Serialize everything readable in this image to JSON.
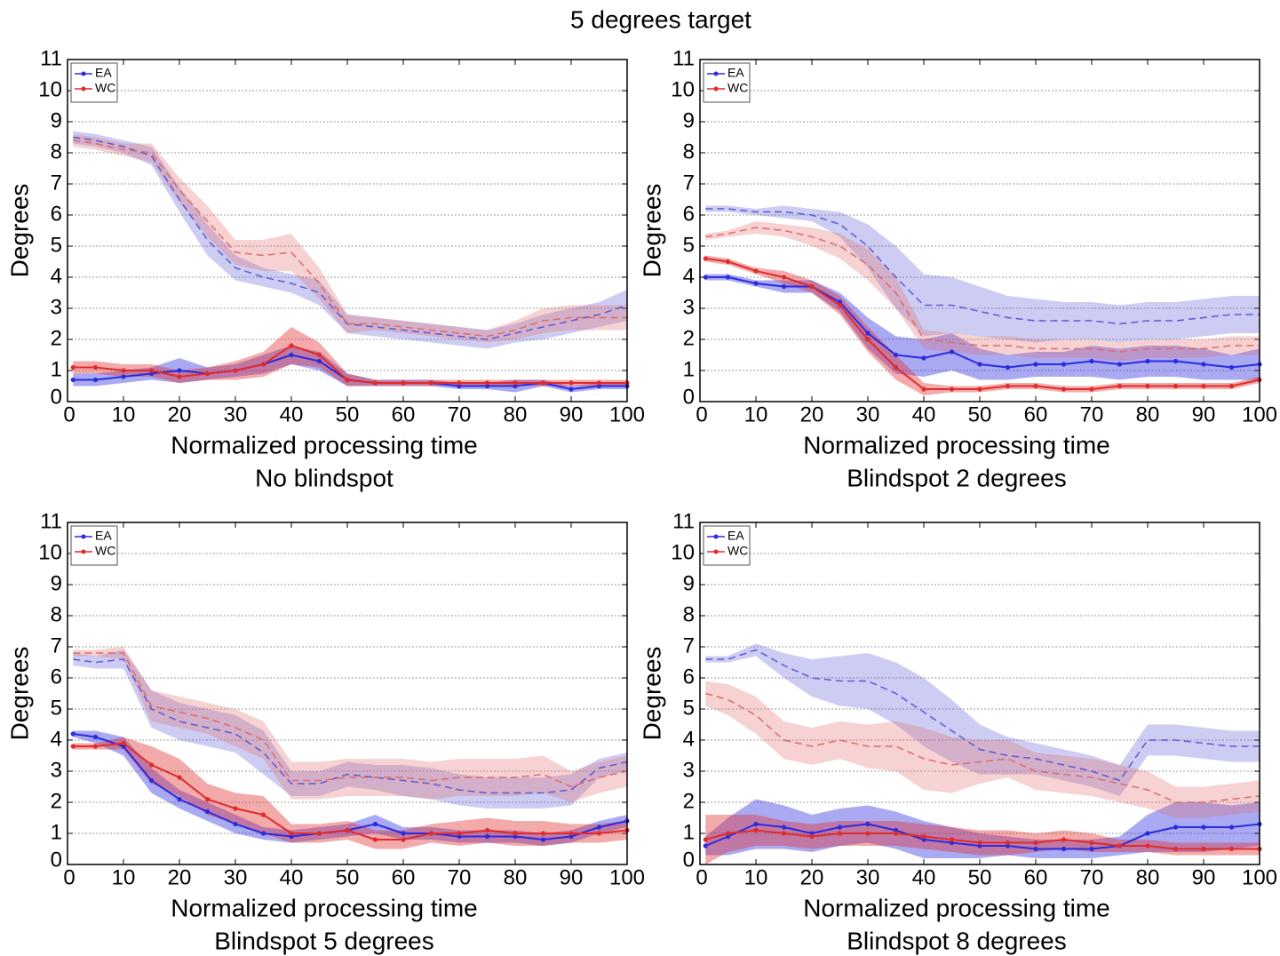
{
  "title": "5  degrees target",
  "chart_data": [
    {
      "type": "line",
      "title": "No blindspot",
      "xlabel": "Normalized processing time",
      "ylabel": "Degrees",
      "x": [
        1,
        5,
        10,
        15,
        20,
        25,
        30,
        35,
        40,
        45,
        50,
        55,
        60,
        65,
        70,
        75,
        80,
        85,
        90,
        95,
        100
      ],
      "xlim": [
        0,
        100
      ],
      "ylim": [
        0,
        11
      ],
      "xticks": [
        0,
        10,
        20,
        30,
        40,
        50,
        60,
        70,
        80,
        90,
        100
      ],
      "yticks": [
        0,
        1,
        2,
        3,
        4,
        5,
        6,
        7,
        8,
        9,
        10,
        11
      ],
      "grid": true,
      "legend": "upper left",
      "series": [
        {
          "name": "EA",
          "color": "#2b2be0",
          "style": "solid",
          "values": [
            0.7,
            0.7,
            0.8,
            0.9,
            1.0,
            0.9,
            1.0,
            1.2,
            1.5,
            1.3,
            0.7,
            0.6,
            0.6,
            0.6,
            0.5,
            0.5,
            0.5,
            0.6,
            0.4,
            0.5,
            0.5
          ],
          "error": [
            0.2,
            0.2,
            0.2,
            0.2,
            0.4,
            0.2,
            0.2,
            0.3,
            0.3,
            0.3,
            0.2,
            0.1,
            0.1,
            0.1,
            0.1,
            0.1,
            0.2,
            0.1,
            0.1,
            0.1,
            0.1
          ]
        },
        {
          "name": "WC",
          "color": "#e02b2b",
          "style": "solid",
          "values": [
            1.1,
            1.1,
            1.0,
            1.0,
            0.8,
            0.9,
            1.0,
            1.2,
            1.8,
            1.5,
            0.7,
            0.6,
            0.6,
            0.6,
            0.6,
            0.6,
            0.6,
            0.6,
            0.6,
            0.6,
            0.6
          ],
          "error": [
            0.2,
            0.2,
            0.2,
            0.2,
            0.2,
            0.2,
            0.3,
            0.4,
            0.6,
            0.4,
            0.2,
            0.1,
            0.1,
            0.1,
            0.1,
            0.1,
            0.1,
            0.1,
            0.1,
            0.1,
            0.1
          ]
        },
        {
          "color": "#5a5ad6",
          "style": "dashed",
          "values": [
            8.5,
            8.4,
            8.2,
            7.9,
            6.5,
            5.2,
            4.3,
            4.0,
            3.8,
            3.5,
            2.5,
            2.4,
            2.3,
            2.2,
            2.1,
            2.0,
            2.2,
            2.4,
            2.6,
            2.8,
            3.1
          ],
          "error": [
            0.2,
            0.2,
            0.2,
            0.3,
            0.4,
            0.5,
            0.4,
            0.3,
            0.3,
            0.4,
            0.3,
            0.3,
            0.3,
            0.3,
            0.3,
            0.3,
            0.3,
            0.4,
            0.4,
            0.4,
            0.5
          ]
        },
        {
          "color": "#e06a6a",
          "style": "dashed",
          "values": [
            8.4,
            8.3,
            8.1,
            8.0,
            6.8,
            5.8,
            4.8,
            4.7,
            4.8,
            3.8,
            2.5,
            2.5,
            2.4,
            2.3,
            2.2,
            2.1,
            2.3,
            2.6,
            2.7,
            2.7,
            2.7
          ],
          "error": [
            0.2,
            0.2,
            0.2,
            0.3,
            0.4,
            0.5,
            0.4,
            0.5,
            0.6,
            0.5,
            0.3,
            0.2,
            0.2,
            0.2,
            0.2,
            0.2,
            0.3,
            0.4,
            0.4,
            0.4,
            0.4
          ]
        }
      ]
    },
    {
      "type": "line",
      "title": "Blindspot 2 degrees",
      "xlabel": "Normalized processing time",
      "ylabel": "Degrees",
      "x": [
        1,
        5,
        10,
        15,
        20,
        25,
        30,
        35,
        40,
        45,
        50,
        55,
        60,
        65,
        70,
        75,
        80,
        85,
        90,
        95,
        100
      ],
      "xlim": [
        0,
        100
      ],
      "ylim": [
        0,
        11
      ],
      "xticks": [
        0,
        10,
        20,
        30,
        40,
        50,
        60,
        70,
        80,
        90,
        100
      ],
      "yticks": [
        0,
        1,
        2,
        3,
        4,
        5,
        6,
        7,
        8,
        9,
        10,
        11
      ],
      "grid": true,
      "legend": "upper left",
      "series": [
        {
          "name": "EA",
          "color": "#2b2be0",
          "style": "solid",
          "values": [
            4.0,
            4.0,
            3.8,
            3.7,
            3.7,
            3.2,
            2.2,
            1.5,
            1.4,
            1.6,
            1.2,
            1.1,
            1.2,
            1.2,
            1.3,
            1.2,
            1.3,
            1.3,
            1.2,
            1.1,
            1.2
          ],
          "error": [
            0.1,
            0.1,
            0.1,
            0.2,
            0.2,
            0.3,
            0.5,
            0.6,
            0.6,
            0.6,
            0.5,
            0.4,
            0.4,
            0.4,
            0.5,
            0.5,
            0.5,
            0.5,
            0.5,
            0.4,
            0.5
          ]
        },
        {
          "name": "WC",
          "color": "#e02b2b",
          "style": "solid",
          "values": [
            4.6,
            4.5,
            4.2,
            4.0,
            3.7,
            3.1,
            2.0,
            1.1,
            0.4,
            0.4,
            0.4,
            0.5,
            0.5,
            0.4,
            0.4,
            0.5,
            0.5,
            0.5,
            0.5,
            0.5,
            0.7
          ],
          "error": [
            0.1,
            0.1,
            0.1,
            0.2,
            0.2,
            0.3,
            0.4,
            0.4,
            0.2,
            0.1,
            0.1,
            0.1,
            0.1,
            0.1,
            0.1,
            0.1,
            0.1,
            0.1,
            0.1,
            0.1,
            0.1
          ]
        },
        {
          "color": "#5a5ad6",
          "style": "dashed",
          "values": [
            6.2,
            6.2,
            6.1,
            6.1,
            6.0,
            5.7,
            5.0,
            4.0,
            3.1,
            3.1,
            2.9,
            2.7,
            2.6,
            2.6,
            2.6,
            2.5,
            2.6,
            2.6,
            2.7,
            2.8,
            2.8
          ],
          "error": [
            0.1,
            0.1,
            0.1,
            0.2,
            0.2,
            0.4,
            0.7,
            1.0,
            1.0,
            0.9,
            0.8,
            0.7,
            0.7,
            0.6,
            0.6,
            0.6,
            0.6,
            0.6,
            0.6,
            0.6,
            0.6
          ]
        },
        {
          "color": "#e06a6a",
          "style": "dashed",
          "values": [
            5.3,
            5.4,
            5.6,
            5.5,
            5.3,
            5.0,
            4.4,
            3.5,
            2.0,
            1.9,
            1.8,
            1.8,
            1.7,
            1.7,
            1.7,
            1.6,
            1.7,
            1.7,
            1.7,
            1.8,
            1.8
          ],
          "error": [
            0.1,
            0.1,
            0.2,
            0.2,
            0.3,
            0.4,
            0.5,
            0.5,
            0.3,
            0.3,
            0.3,
            0.3,
            0.3,
            0.3,
            0.3,
            0.3,
            0.3,
            0.3,
            0.3,
            0.3,
            0.3
          ]
        }
      ]
    },
    {
      "type": "line",
      "title": "Blindspot 5 degrees",
      "xlabel": "Normalized processing time",
      "ylabel": "Degrees",
      "x": [
        1,
        5,
        10,
        15,
        20,
        25,
        30,
        35,
        40,
        45,
        50,
        55,
        60,
        65,
        70,
        75,
        80,
        85,
        90,
        95,
        100
      ],
      "xlim": [
        0,
        100
      ],
      "ylim": [
        0,
        11
      ],
      "xticks": [
        0,
        10,
        20,
        30,
        40,
        50,
        60,
        70,
        80,
        90,
        100
      ],
      "yticks": [
        0,
        1,
        2,
        3,
        4,
        5,
        6,
        7,
        8,
        9,
        10,
        11
      ],
      "grid": true,
      "legend": "upper left",
      "series": [
        {
          "name": "EA",
          "color": "#2b2be0",
          "style": "solid",
          "values": [
            4.2,
            4.1,
            3.8,
            2.7,
            2.1,
            1.7,
            1.3,
            1.0,
            0.9,
            1.0,
            1.1,
            1.3,
            1.0,
            1.0,
            0.9,
            0.9,
            0.9,
            0.8,
            0.9,
            1.2,
            1.4
          ],
          "error": [
            0.1,
            0.2,
            0.3,
            0.4,
            0.3,
            0.3,
            0.3,
            0.2,
            0.2,
            0.2,
            0.2,
            0.3,
            0.2,
            0.2,
            0.2,
            0.2,
            0.2,
            0.2,
            0.2,
            0.2,
            0.2
          ]
        },
        {
          "name": "WC",
          "color": "#e02b2b",
          "style": "solid",
          "values": [
            3.8,
            3.8,
            3.9,
            3.2,
            2.8,
            2.1,
            1.8,
            1.6,
            1.0,
            1.0,
            1.1,
            0.8,
            0.8,
            1.0,
            1.0,
            1.1,
            1.0,
            1.0,
            1.0,
            1.0,
            1.1
          ],
          "error": [
            0.1,
            0.1,
            0.2,
            0.6,
            0.6,
            0.5,
            0.5,
            0.6,
            0.3,
            0.3,
            0.3,
            0.3,
            0.3,
            0.3,
            0.4,
            0.4,
            0.4,
            0.4,
            0.3,
            0.3,
            0.3
          ]
        },
        {
          "color": "#5a5ad6",
          "style": "dashed",
          "values": [
            6.6,
            6.5,
            6.6,
            5.0,
            4.6,
            4.4,
            4.2,
            3.6,
            2.6,
            2.6,
            2.9,
            2.8,
            2.7,
            2.6,
            2.4,
            2.3,
            2.3,
            2.3,
            2.4,
            3.1,
            3.3
          ],
          "error": [
            0.2,
            0.2,
            0.3,
            0.6,
            0.6,
            0.6,
            0.6,
            0.7,
            0.4,
            0.4,
            0.4,
            0.4,
            0.5,
            0.5,
            0.5,
            0.5,
            0.5,
            0.5,
            0.5,
            0.3,
            0.3
          ]
        },
        {
          "color": "#e06a6a",
          "style": "dashed",
          "values": [
            6.8,
            6.8,
            6.8,
            5.1,
            4.9,
            4.7,
            4.4,
            4.0,
            2.7,
            2.7,
            2.8,
            2.8,
            2.8,
            2.7,
            2.8,
            2.8,
            2.8,
            2.9,
            2.5,
            2.8,
            3.0
          ],
          "error": [
            0.1,
            0.1,
            0.2,
            0.5,
            0.5,
            0.5,
            0.6,
            0.6,
            0.6,
            0.6,
            0.6,
            0.6,
            0.6,
            0.6,
            0.6,
            0.6,
            0.6,
            0.6,
            0.5,
            0.5,
            0.5
          ]
        }
      ]
    },
    {
      "type": "line",
      "title": "Blindspot 8 degrees",
      "xlabel": "Normalized processing time",
      "ylabel": "Degrees",
      "x": [
        1,
        5,
        10,
        15,
        20,
        25,
        30,
        35,
        40,
        45,
        50,
        55,
        60,
        65,
        70,
        75,
        80,
        85,
        90,
        95,
        100
      ],
      "xlim": [
        0,
        100
      ],
      "ylim": [
        0,
        11
      ],
      "xticks": [
        0,
        10,
        20,
        30,
        40,
        50,
        60,
        70,
        80,
        90,
        100
      ],
      "yticks": [
        0,
        1,
        2,
        3,
        4,
        5,
        6,
        7,
        8,
        9,
        10,
        11
      ],
      "grid": true,
      "legend": "upper left",
      "series": [
        {
          "name": "EA",
          "color": "#2b2be0",
          "style": "solid",
          "values": [
            0.6,
            0.9,
            1.3,
            1.2,
            1.0,
            1.2,
            1.3,
            1.1,
            0.8,
            0.7,
            0.6,
            0.6,
            0.5,
            0.5,
            0.5,
            0.6,
            1.0,
            1.2,
            1.2,
            1.2,
            1.3
          ],
          "error": [
            0.3,
            0.6,
            0.8,
            0.7,
            0.6,
            0.6,
            0.6,
            0.6,
            0.6,
            0.5,
            0.4,
            0.3,
            0.3,
            0.3,
            0.3,
            0.3,
            0.6,
            0.8,
            0.8,
            0.7,
            0.7
          ]
        },
        {
          "name": "WC",
          "color": "#e02b2b",
          "style": "solid",
          "values": [
            0.8,
            1.0,
            1.1,
            1.0,
            0.9,
            1.0,
            1.0,
            1.0,
            0.9,
            0.8,
            0.7,
            0.7,
            0.7,
            0.8,
            0.7,
            0.6,
            0.6,
            0.5,
            0.5,
            0.5,
            0.5
          ],
          "error": [
            0.8,
            0.6,
            0.5,
            0.4,
            0.4,
            0.4,
            0.4,
            0.4,
            0.4,
            0.4,
            0.4,
            0.4,
            0.3,
            0.3,
            0.3,
            0.2,
            0.2,
            0.2,
            0.2,
            0.2,
            0.2
          ]
        },
        {
          "color": "#5a5ad6",
          "style": "dashed",
          "values": [
            6.6,
            6.6,
            6.9,
            6.4,
            6.0,
            5.9,
            5.9,
            5.5,
            4.9,
            4.3,
            3.7,
            3.5,
            3.4,
            3.2,
            3.0,
            2.7,
            4.0,
            4.0,
            3.9,
            3.8,
            3.8
          ],
          "error": [
            0.1,
            0.1,
            0.2,
            0.4,
            0.6,
            0.8,
            0.9,
            1.0,
            1.1,
            1.0,
            0.8,
            0.6,
            0.5,
            0.5,
            0.5,
            0.5,
            0.5,
            0.5,
            0.5,
            0.5,
            0.5
          ]
        },
        {
          "color": "#e06a6a",
          "style": "dashed",
          "values": [
            5.5,
            5.3,
            4.8,
            4.0,
            3.8,
            4.0,
            3.8,
            3.8,
            3.4,
            3.2,
            3.3,
            3.4,
            3.0,
            2.9,
            2.8,
            2.6,
            2.4,
            2.0,
            2.0,
            2.1,
            2.2
          ],
          "error": [
            0.4,
            0.5,
            0.6,
            0.6,
            0.6,
            0.6,
            0.7,
            0.8,
            1.0,
            0.9,
            0.7,
            0.6,
            0.6,
            0.6,
            0.6,
            0.6,
            0.6,
            0.5,
            0.5,
            0.5,
            0.5
          ]
        }
      ]
    }
  ]
}
